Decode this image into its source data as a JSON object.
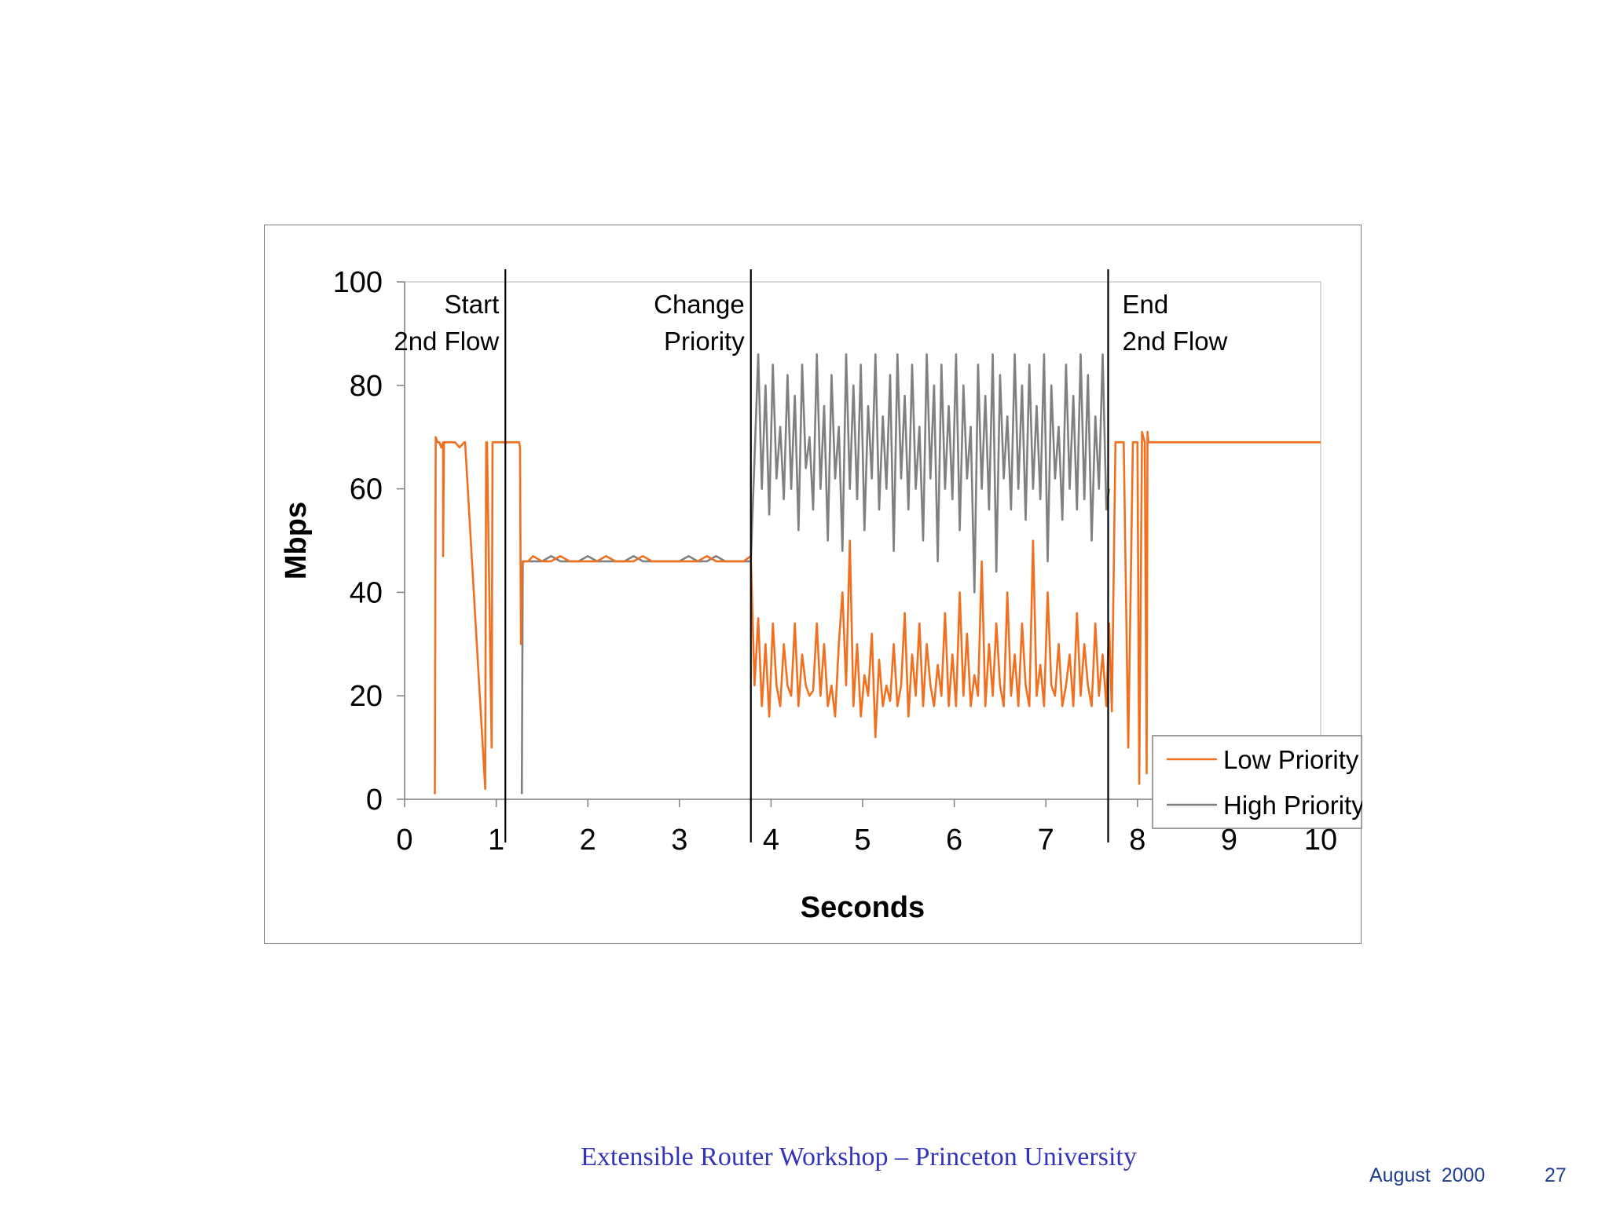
{
  "chart_data": {
    "type": "line",
    "title": "",
    "xlabel": "Seconds",
    "ylabel": "Mbps",
    "xlim": [
      0,
      10
    ],
    "ylim": [
      0,
      100
    ],
    "x_ticks": [
      "0",
      "1",
      "2",
      "3",
      "4",
      "5",
      "6",
      "7",
      "8",
      "9",
      "10"
    ],
    "y_ticks": [
      "0",
      "20",
      "40",
      "60",
      "80",
      "100"
    ],
    "grid": false,
    "legend_position": "bottom-right",
    "colors": {
      "low": "#f07020",
      "high": "#808080"
    },
    "events": [
      {
        "x": 1.1,
        "line1": "Start",
        "line2": "2nd Flow",
        "align": "left"
      },
      {
        "x": 3.78,
        "line1": "Change",
        "line2": "Priority",
        "align": "left"
      },
      {
        "x": 7.68,
        "line1": "End",
        "line2": "2nd Flow",
        "align": "right"
      }
    ],
    "series": [
      {
        "name": "Low Priority",
        "color": "#f07020",
        "x": [
          0.33,
          0.34,
          0.36,
          0.38,
          0.4,
          0.42,
          0.42,
          0.43,
          0.45,
          0.5,
          0.55,
          0.6,
          0.65,
          0.66,
          0.88,
          0.89,
          0.9,
          0.95,
          0.96,
          0.97,
          1.0,
          1.05,
          1.1,
          1.15,
          1.2,
          1.25,
          1.26,
          1.27,
          1.28,
          1.3,
          1.32,
          1.35,
          1.4,
          1.5,
          1.6,
          1.7,
          1.8,
          1.9,
          2.0,
          2.1,
          2.2,
          2.3,
          2.4,
          2.5,
          2.6,
          2.7,
          2.8,
          2.9,
          3.0,
          3.1,
          3.2,
          3.3,
          3.4,
          3.5,
          3.6,
          3.7,
          3.78,
          3.82,
          3.86,
          3.9,
          3.94,
          3.98,
          4.02,
          4.06,
          4.1,
          4.14,
          4.18,
          4.22,
          4.26,
          4.3,
          4.34,
          4.38,
          4.42,
          4.46,
          4.5,
          4.54,
          4.58,
          4.62,
          4.66,
          4.7,
          4.74,
          4.78,
          4.82,
          4.86,
          4.9,
          4.94,
          4.98,
          5.02,
          5.06,
          5.1,
          5.14,
          5.18,
          5.22,
          5.26,
          5.3,
          5.34,
          5.38,
          5.42,
          5.46,
          5.5,
          5.54,
          5.58,
          5.62,
          5.66,
          5.7,
          5.74,
          5.78,
          5.82,
          5.86,
          5.9,
          5.94,
          5.98,
          6.02,
          6.06,
          6.1,
          6.14,
          6.18,
          6.22,
          6.26,
          6.3,
          6.34,
          6.38,
          6.42,
          6.46,
          6.5,
          6.54,
          6.58,
          6.62,
          6.66,
          6.7,
          6.74,
          6.78,
          6.82,
          6.86,
          6.9,
          6.94,
          6.98,
          7.02,
          7.06,
          7.1,
          7.14,
          7.18,
          7.22,
          7.26,
          7.3,
          7.34,
          7.38,
          7.42,
          7.46,
          7.5,
          7.54,
          7.58,
          7.62,
          7.66,
          7.69,
          7.72,
          7.76,
          7.8,
          7.85,
          7.9,
          7.95,
          8.0,
          8.02,
          8.05,
          8.08,
          8.1,
          8.11,
          8.12,
          8.13,
          8.15,
          8.2,
          8.5,
          9.0,
          9.5,
          10.0
        ],
        "y": [
          1,
          70,
          69,
          69,
          68,
          69,
          47,
          69,
          69,
          69,
          69,
          68,
          69,
          69,
          2,
          69,
          69,
          10,
          69,
          69,
          69,
          69,
          69,
          69,
          69,
          69,
          68,
          30,
          45,
          46,
          46,
          46,
          47,
          46,
          46,
          47,
          46,
          46,
          46,
          46,
          47,
          46,
          46,
          46,
          47,
          46,
          46,
          46,
          46,
          46,
          46,
          47,
          46,
          46,
          46,
          46,
          47,
          22,
          35,
          18,
          30,
          16,
          34,
          22,
          18,
          30,
          22,
          20,
          34,
          18,
          28,
          22,
          20,
          21,
          34,
          20,
          30,
          18,
          22,
          16,
          30,
          40,
          22,
          50,
          18,
          30,
          16,
          24,
          20,
          32,
          12,
          27,
          18,
          22,
          19,
          30,
          18,
          22,
          36,
          16,
          28,
          20,
          34,
          18,
          30,
          22,
          18,
          26,
          20,
          36,
          18,
          28,
          18,
          40,
          20,
          32,
          18,
          24,
          20,
          46,
          18,
          30,
          20,
          34,
          22,
          18,
          40,
          20,
          28,
          18,
          34,
          22,
          18,
          50,
          20,
          26,
          18,
          40,
          22,
          20,
          30,
          18,
          22,
          28,
          18,
          36,
          20,
          30,
          22,
          18,
          34,
          20,
          28,
          18,
          34,
          17,
          69,
          69,
          69,
          10,
          69,
          69,
          3,
          71,
          69,
          5,
          71,
          69,
          69,
          69,
          69,
          69,
          69,
          69,
          69
        ]
      },
      {
        "name": "High Priority",
        "color": "#808080",
        "x": [
          1.28,
          1.29,
          1.3,
          1.32,
          1.35,
          1.4,
          1.5,
          1.6,
          1.7,
          1.8,
          1.9,
          2.0,
          2.1,
          2.2,
          2.3,
          2.4,
          2.5,
          2.6,
          2.7,
          2.8,
          2.9,
          3.0,
          3.1,
          3.2,
          3.3,
          3.4,
          3.5,
          3.6,
          3.7,
          3.78,
          3.82,
          3.86,
          3.9,
          3.94,
          3.98,
          4.02,
          4.06,
          4.1,
          4.14,
          4.18,
          4.22,
          4.26,
          4.3,
          4.34,
          4.38,
          4.42,
          4.46,
          4.5,
          4.54,
          4.58,
          4.62,
          4.66,
          4.7,
          4.74,
          4.78,
          4.82,
          4.86,
          4.9,
          4.94,
          4.98,
          5.02,
          5.06,
          5.1,
          5.14,
          5.18,
          5.22,
          5.26,
          5.3,
          5.34,
          5.38,
          5.42,
          5.46,
          5.5,
          5.54,
          5.58,
          5.62,
          5.66,
          5.7,
          5.74,
          5.78,
          5.82,
          5.86,
          5.9,
          5.94,
          5.98,
          6.02,
          6.06,
          6.1,
          6.14,
          6.18,
          6.22,
          6.26,
          6.3,
          6.34,
          6.38,
          6.42,
          6.46,
          6.5,
          6.54,
          6.58,
          6.62,
          6.66,
          6.7,
          6.74,
          6.78,
          6.82,
          6.86,
          6.9,
          6.94,
          6.98,
          7.02,
          7.06,
          7.1,
          7.14,
          7.18,
          7.22,
          7.26,
          7.3,
          7.34,
          7.38,
          7.42,
          7.46,
          7.5,
          7.54,
          7.58,
          7.62,
          7.66,
          7.69
        ],
        "y": [
          1,
          46,
          46,
          46,
          46,
          46,
          46,
          47,
          46,
          46,
          46,
          47,
          46,
          46,
          46,
          46,
          47,
          46,
          46,
          46,
          46,
          46,
          47,
          46,
          46,
          47,
          46,
          46,
          46,
          46,
          66,
          86,
          60,
          80,
          55,
          84,
          62,
          72,
          58,
          82,
          60,
          78,
          52,
          84,
          64,
          70,
          56,
          86,
          60,
          76,
          50,
          82,
          62,
          72,
          48,
          86,
          60,
          80,
          58,
          84,
          52,
          76,
          62,
          86,
          56,
          74,
          60,
          82,
          48,
          86,
          62,
          78,
          56,
          84,
          60,
          72,
          50,
          86,
          62,
          80,
          46,
          84,
          60,
          76,
          58,
          86,
          52,
          80,
          62,
          72,
          40,
          84,
          60,
          78,
          56,
          86,
          44,
          82,
          62,
          74,
          56,
          86,
          60,
          80,
          54,
          84,
          60,
          76,
          58,
          86,
          46,
          80,
          62,
          72,
          54,
          84,
          60,
          78,
          56,
          86,
          58,
          82,
          50,
          74,
          60,
          86,
          56,
          60
        ]
      }
    ]
  },
  "footer": {
    "center": "Extensible Router Workshop – Princeton University",
    "date": "August  2000",
    "page": "27"
  }
}
